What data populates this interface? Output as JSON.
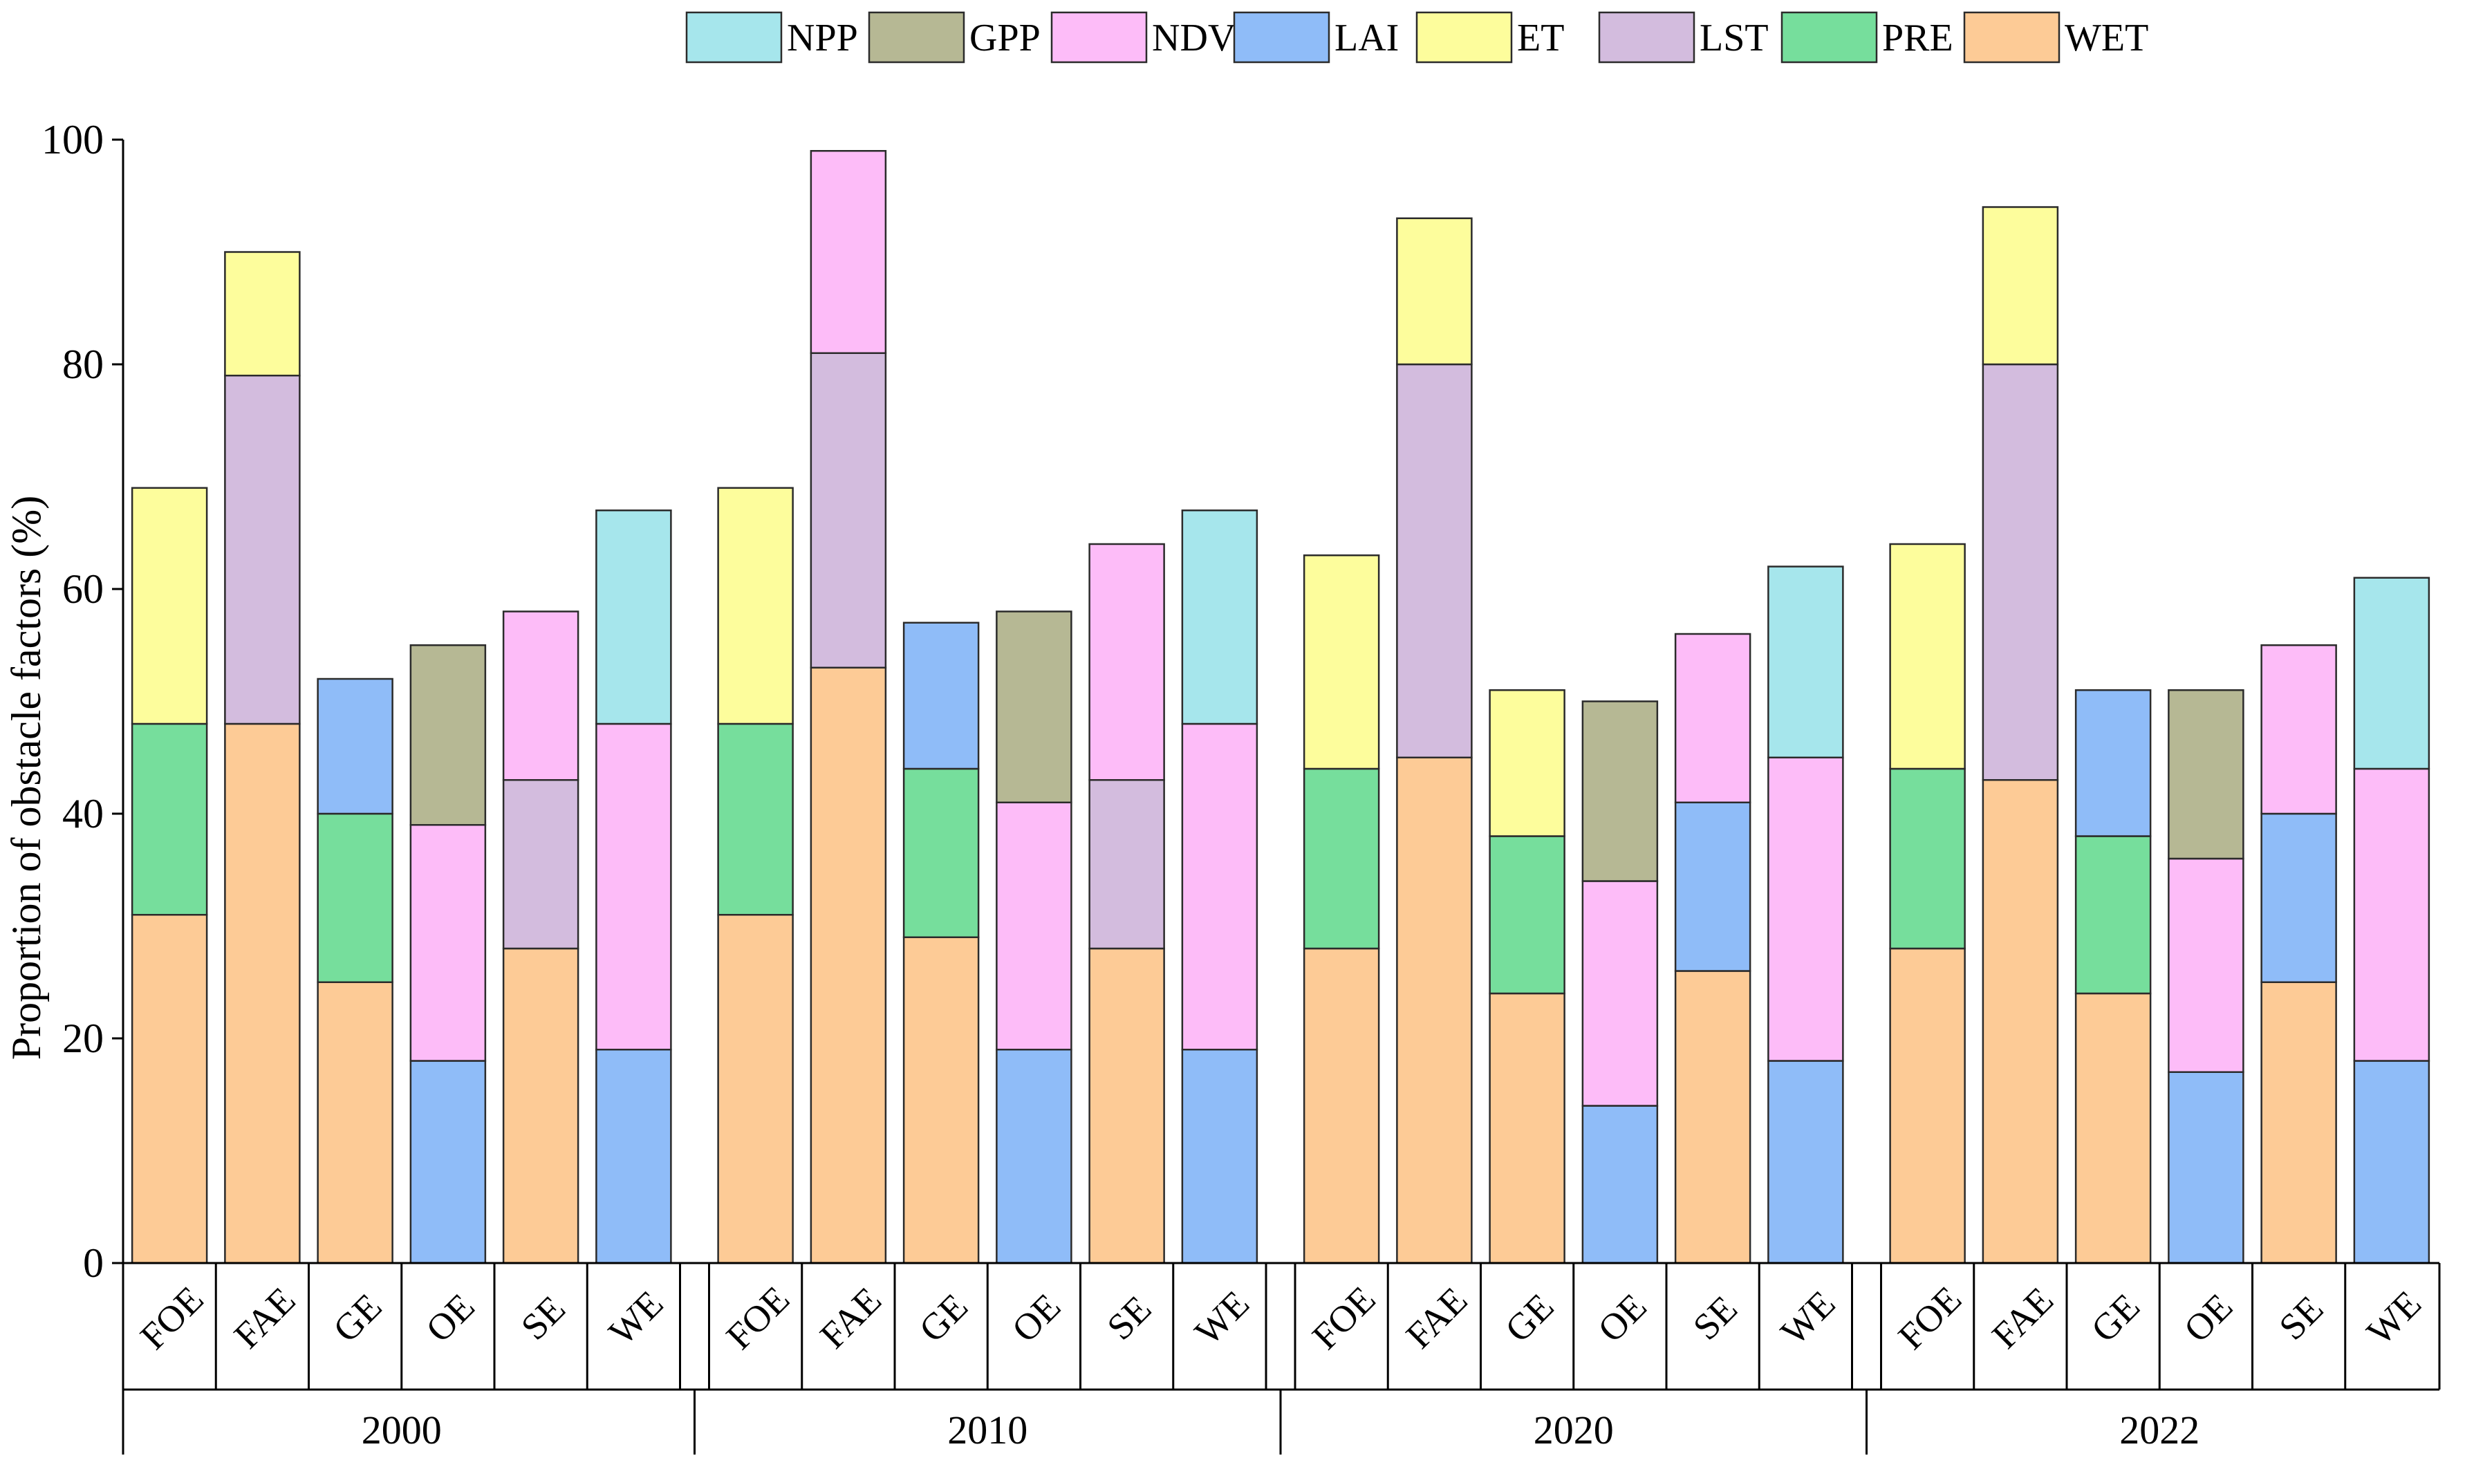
{
  "chart_data": {
    "type": "bar",
    "stacked": true,
    "ylabel": "Proportion of obstacle factors (%)",
    "ylim": [
      0,
      100
    ],
    "yticks": [
      0,
      20,
      40,
      60,
      80,
      100
    ],
    "legend_position": "top",
    "factors": [
      {
        "key": "NPP",
        "label": "NPP",
        "color": "#a6e6ec"
      },
      {
        "key": "GPP",
        "label": "GPP",
        "color": "#b6b894"
      },
      {
        "key": "NDVI",
        "label": "NDVI",
        "color": "#fdbcf8"
      },
      {
        "key": "LAI",
        "label": "LAI",
        "color": "#8fbcf8"
      },
      {
        "key": "ET",
        "label": "ET",
        "color": "#fdfd9c"
      },
      {
        "key": "LST",
        "label": "LST",
        "color": "#d3bcde"
      },
      {
        "key": "PRE",
        "label": "PRE",
        "color": "#76de9c"
      },
      {
        "key": "WET",
        "label": "WET",
        "color": "#fdcb96"
      }
    ],
    "groups": [
      {
        "label": "2000",
        "bars": [
          {
            "category": "FOE",
            "segments": [
              {
                "factor": "WET",
                "value": 31
              },
              {
                "factor": "PRE",
                "value": 17
              },
              {
                "factor": "ET",
                "value": 21
              }
            ]
          },
          {
            "category": "FAE",
            "segments": [
              {
                "factor": "WET",
                "value": 48
              },
              {
                "factor": "LST",
                "value": 31
              },
              {
                "factor": "ET",
                "value": 11
              }
            ]
          },
          {
            "category": "GE",
            "segments": [
              {
                "factor": "WET",
                "value": 25
              },
              {
                "factor": "PRE",
                "value": 15
              },
              {
                "factor": "LAI",
                "value": 12
              }
            ]
          },
          {
            "category": "OE",
            "segments": [
              {
                "factor": "LAI",
                "value": 18
              },
              {
                "factor": "NDVI",
                "value": 21
              },
              {
                "factor": "GPP",
                "value": 16
              }
            ]
          },
          {
            "category": "SE",
            "segments": [
              {
                "factor": "WET",
                "value": 28
              },
              {
                "factor": "LST",
                "value": 15
              },
              {
                "factor": "NDVI",
                "value": 15
              }
            ]
          },
          {
            "category": "WE",
            "segments": [
              {
                "factor": "LAI",
                "value": 19
              },
              {
                "factor": "NDVI",
                "value": 29
              },
              {
                "factor": "NPP",
                "value": 19
              }
            ]
          }
        ]
      },
      {
        "label": "2010",
        "bars": [
          {
            "category": "FOE",
            "segments": [
              {
                "factor": "WET",
                "value": 31
              },
              {
                "factor": "PRE",
                "value": 17
              },
              {
                "factor": "ET",
                "value": 21
              }
            ]
          },
          {
            "category": "FAE",
            "segments": [
              {
                "factor": "WET",
                "value": 53
              },
              {
                "factor": "LST",
                "value": 28
              },
              {
                "factor": "NDVI",
                "value": 18
              }
            ]
          },
          {
            "category": "GE",
            "segments": [
              {
                "factor": "WET",
                "value": 29
              },
              {
                "factor": "PRE",
                "value": 15
              },
              {
                "factor": "LAI",
                "value": 13
              }
            ]
          },
          {
            "category": "OE",
            "segments": [
              {
                "factor": "LAI",
                "value": 19
              },
              {
                "factor": "NDVI",
                "value": 22
              },
              {
                "factor": "GPP",
                "value": 17
              }
            ]
          },
          {
            "category": "SE",
            "segments": [
              {
                "factor": "WET",
                "value": 28
              },
              {
                "factor": "LST",
                "value": 15
              },
              {
                "factor": "NDVI",
                "value": 21
              }
            ]
          },
          {
            "category": "WE",
            "segments": [
              {
                "factor": "LAI",
                "value": 19
              },
              {
                "factor": "NDVI",
                "value": 29
              },
              {
                "factor": "NPP",
                "value": 19
              }
            ]
          }
        ]
      },
      {
        "label": "2020",
        "bars": [
          {
            "category": "FOE",
            "segments": [
              {
                "factor": "WET",
                "value": 28
              },
              {
                "factor": "PRE",
                "value": 16
              },
              {
                "factor": "ET",
                "value": 19
              }
            ]
          },
          {
            "category": "FAE",
            "segments": [
              {
                "factor": "WET",
                "value": 45
              },
              {
                "factor": "LST",
                "value": 35
              },
              {
                "factor": "ET",
                "value": 13
              }
            ]
          },
          {
            "category": "GE",
            "segments": [
              {
                "factor": "WET",
                "value": 24
              },
              {
                "factor": "PRE",
                "value": 14
              },
              {
                "factor": "ET",
                "value": 13
              }
            ]
          },
          {
            "category": "OE",
            "segments": [
              {
                "factor": "LAI",
                "value": 14
              },
              {
                "factor": "NDVI",
                "value": 20
              },
              {
                "factor": "GPP",
                "value": 16
              }
            ]
          },
          {
            "category": "SE",
            "segments": [
              {
                "factor": "WET",
                "value": 26
              },
              {
                "factor": "LAI",
                "value": 15
              },
              {
                "factor": "NDVI",
                "value": 15
              }
            ]
          },
          {
            "category": "WE",
            "segments": [
              {
                "factor": "LAI",
                "value": 18
              },
              {
                "factor": "NDVI",
                "value": 27
              },
              {
                "factor": "NPP",
                "value": 17
              }
            ]
          }
        ]
      },
      {
        "label": "2022",
        "bars": [
          {
            "category": "FOE",
            "segments": [
              {
                "factor": "WET",
                "value": 28
              },
              {
                "factor": "PRE",
                "value": 16
              },
              {
                "factor": "ET",
                "value": 20
              }
            ]
          },
          {
            "category": "FAE",
            "segments": [
              {
                "factor": "WET",
                "value": 43
              },
              {
                "factor": "LST",
                "value": 37
              },
              {
                "factor": "ET",
                "value": 14
              }
            ]
          },
          {
            "category": "GE",
            "segments": [
              {
                "factor": "WET",
                "value": 24
              },
              {
                "factor": "PRE",
                "value": 14
              },
              {
                "factor": "LAI",
                "value": 13
              }
            ]
          },
          {
            "category": "OE",
            "segments": [
              {
                "factor": "LAI",
                "value": 17
              },
              {
                "factor": "NDVI",
                "value": 19
              },
              {
                "factor": "GPP",
                "value": 15
              }
            ]
          },
          {
            "category": "SE",
            "segments": [
              {
                "factor": "WET",
                "value": 25
              },
              {
                "factor": "LAI",
                "value": 15
              },
              {
                "factor": "NDVI",
                "value": 15
              }
            ]
          },
          {
            "category": "WE",
            "segments": [
              {
                "factor": "LAI",
                "value": 18
              },
              {
                "factor": "NDVI",
                "value": 26
              },
              {
                "factor": "NPP",
                "value": 17
              }
            ]
          }
        ]
      }
    ]
  }
}
